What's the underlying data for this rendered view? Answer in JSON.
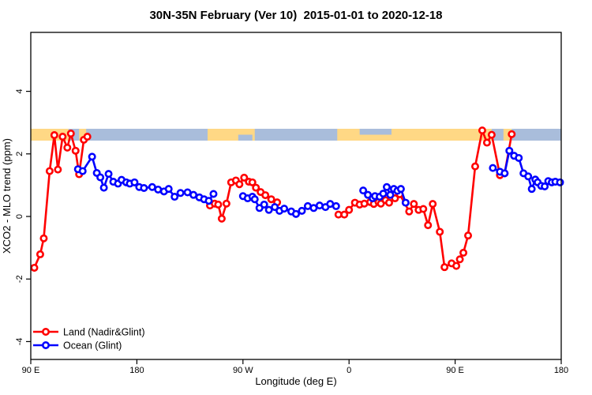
{
  "window": {
    "title": "30N-35N February (Ver 10)  2015-01-01 to 2020-12-18"
  },
  "chart_data": {
    "type": "line",
    "title": "30N-35N February (Ver 10)  2015-01-01 to 2020-12-18",
    "xlabel": "Longitude (deg E)",
    "ylabel": "XCO2 - MLO trend (ppm)",
    "x_axis": {
      "range_deg_east_of_90E": [
        0,
        450
      ],
      "tick_offsets": [
        0,
        90,
        180,
        270,
        360,
        450
      ],
      "tick_labels": [
        "90 E",
        "180",
        "90 W",
        "0",
        "90 E",
        "180"
      ]
    },
    "y_axis": {
      "ticks": [
        -4,
        -2,
        0,
        2,
        4
      ],
      "tick_labels": [
        "-4",
        "-2",
        "0",
        "2",
        "4"
      ],
      "range": [
        -4.6,
        5.9
      ],
      "label_rotation_deg": -90
    },
    "grid": "off",
    "legend_position": "bottom-left-inside",
    "map_strip": {
      "description": "land/ocean map band drawn across plot near 2.5 ppm",
      "value_top": 2.8,
      "value_bottom": 2.42,
      "ocean_color": "#a9bddb",
      "land_color": "#ffd885",
      "land_segments_deg": [
        [
          0,
          32
        ],
        [
          41,
          47
        ],
        [
          150,
          190
        ],
        [
          260,
          391
        ],
        [
          401,
          408
        ]
      ],
      "ocean_overlays": [
        {
          "span_deg": [
            176,
            188
          ],
          "half": "bottom"
        },
        {
          "span_deg": [
            279,
            306
          ],
          "half": "top"
        }
      ]
    },
    "series": [
      {
        "name": "Land (Nadir&Glint)",
        "color": "#ff0000",
        "marker": "open-circle",
        "segments": [
          [
            [
              3,
              -1.64
            ],
            [
              8,
              -1.21
            ],
            [
              11,
              -0.7
            ],
            [
              16,
              1.45
            ],
            [
              20,
              2.6
            ],
            [
              23,
              1.5
            ],
            [
              27,
              2.55
            ],
            [
              31,
              2.2
            ],
            [
              34,
              2.65
            ],
            [
              38,
              2.1
            ],
            [
              41,
              1.35
            ],
            [
              45,
              2.45
            ],
            [
              48,
              2.55
            ]
          ],
          [
            [
              152,
              0.35
            ],
            [
              156,
              0.41
            ],
            [
              159,
              0.38
            ],
            [
              162,
              -0.07
            ],
            [
              166,
              0.41
            ],
            [
              170,
              1.09
            ],
            [
              174,
              1.15
            ],
            [
              177,
              1.03
            ],
            [
              181,
              1.24
            ],
            [
              185,
              1.11
            ],
            [
              188,
              1.09
            ],
            [
              191,
              0.92
            ],
            [
              195,
              0.78
            ],
            [
              199,
              0.68
            ],
            [
              204,
              0.55
            ],
            [
              209,
              0.45
            ]
          ],
          [
            [
              261,
              0.06
            ],
            [
              266,
              0.06
            ],
            [
              270,
              0.21
            ],
            [
              275,
              0.44
            ],
            [
              279,
              0.38
            ],
            [
              283,
              0.41
            ],
            [
              288,
              0.46
            ],
            [
              291,
              0.4
            ],
            [
              295,
              0.46
            ],
            [
              297,
              0.41
            ],
            [
              301,
              0.52
            ],
            [
              304,
              0.44
            ],
            [
              309,
              0.58
            ],
            [
              313,
              0.71
            ],
            [
              321,
              0.16
            ],
            [
              325,
              0.4
            ],
            [
              329,
              0.21
            ],
            [
              333,
              0.24
            ],
            [
              337,
              -0.28
            ],
            [
              341,
              0.4
            ],
            [
              347,
              -0.49
            ],
            [
              351,
              -1.62
            ],
            [
              357,
              -1.5
            ],
            [
              361,
              -1.58
            ],
            [
              364,
              -1.37
            ],
            [
              367,
              -1.16
            ],
            [
              371,
              -0.61
            ],
            [
              377,
              1.6
            ],
            [
              383,
              2.75
            ],
            [
              387,
              2.36
            ],
            [
              391,
              2.61
            ],
            [
              398,
              1.32
            ],
            [
              402,
              1.38
            ],
            [
              408,
              2.63
            ]
          ]
        ]
      },
      {
        "name": "Ocean (Glint)",
        "color": "#0000ff",
        "marker": "open-circle",
        "segments": [
          [
            [
              40,
              1.51
            ],
            [
              44,
              1.45
            ],
            [
              52,
              1.91
            ],
            [
              56,
              1.39
            ],
            [
              59,
              1.25
            ],
            [
              62,
              0.92
            ],
            [
              66,
              1.36
            ],
            [
              70,
              1.11
            ],
            [
              74,
              1.05
            ],
            [
              77,
              1.17
            ],
            [
              81,
              1.09
            ],
            [
              84,
              1.05
            ],
            [
              88,
              1.09
            ],
            [
              92,
              0.94
            ],
            [
              96,
              0.91
            ],
            [
              103,
              0.94
            ],
            [
              108,
              0.86
            ],
            [
              113,
              0.8
            ],
            [
              117,
              0.88
            ],
            [
              122,
              0.63
            ],
            [
              127,
              0.75
            ],
            [
              133,
              0.77
            ],
            [
              138,
              0.69
            ],
            [
              143,
              0.61
            ],
            [
              147,
              0.55
            ],
            [
              151,
              0.5
            ],
            [
              155,
              0.72
            ]
          ],
          [
            [
              180,
              0.65
            ],
            [
              184,
              0.58
            ],
            [
              188,
              0.63
            ],
            [
              190,
              0.55
            ],
            [
              194,
              0.27
            ],
            [
              198,
              0.38
            ],
            [
              202,
              0.21
            ],
            [
              207,
              0.3
            ],
            [
              211,
              0.18
            ],
            [
              215,
              0.25
            ],
            [
              221,
              0.16
            ],
            [
              225,
              0.08
            ],
            [
              230,
              0.18
            ],
            [
              235,
              0.33
            ],
            [
              240,
              0.27
            ],
            [
              245,
              0.35
            ],
            [
              250,
              0.3
            ],
            [
              254,
              0.4
            ],
            [
              259,
              0.33
            ]
          ],
          [
            [
              282,
              0.83
            ],
            [
              286,
              0.69
            ],
            [
              290,
              0.58
            ],
            [
              292,
              0.65
            ],
            [
              296,
              0.63
            ],
            [
              299,
              0.73
            ],
            [
              302,
              0.94
            ],
            [
              305,
              0.69
            ],
            [
              308,
              0.88
            ],
            [
              311,
              0.82
            ],
            [
              314,
              0.88
            ],
            [
              318,
              0.44
            ]
          ],
          [
            [
              392,
              1.55
            ],
            [
              398,
              1.43
            ],
            [
              402,
              1.38
            ],
            [
              406,
              2.1
            ],
            [
              410,
              1.94
            ],
            [
              414,
              1.87
            ],
            [
              418,
              1.38
            ],
            [
              422,
              1.28
            ],
            [
              425,
              0.88
            ],
            [
              428,
              1.18
            ],
            [
              430,
              1.09
            ],
            [
              433,
              0.98
            ],
            [
              436,
              0.96
            ],
            [
              439,
              1.13
            ],
            [
              442,
              1.09
            ],
            [
              445,
              1.11
            ],
            [
              449,
              1.09
            ]
          ]
        ]
      }
    ]
  }
}
